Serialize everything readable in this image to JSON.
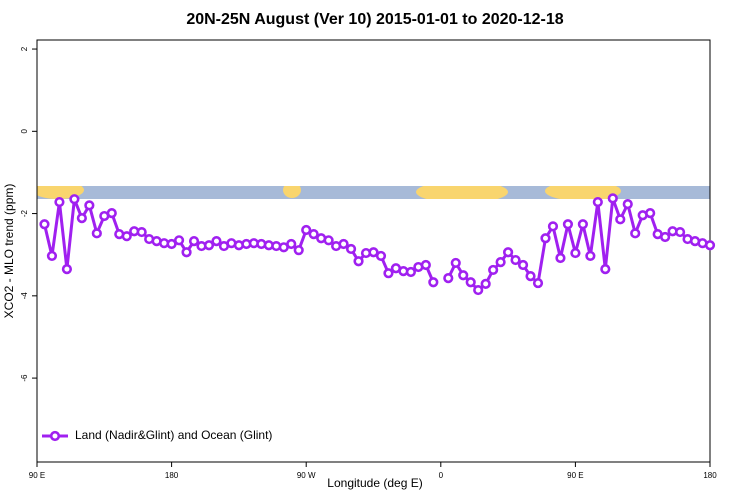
{
  "chart_data": {
    "type": "line",
    "title": "20N-25N August (Ver 10)   2015-01-01 to 2020-12-18",
    "x_label": "Longitude (deg E)",
    "y_label": "XCO2 - MLO trend (ppm)",
    "x": [
      95,
      100,
      105,
      110,
      115,
      120,
      125,
      130,
      135,
      140,
      145,
      150,
      155,
      160,
      165,
      170,
      175,
      180,
      185,
      190,
      195,
      200,
      205,
      210,
      215,
      220,
      225,
      230,
      235,
      240,
      245,
      250,
      255,
      260,
      265,
      270,
      275,
      280,
      285,
      290,
      295,
      300,
      305,
      310,
      315,
      320,
      325,
      330,
      335,
      340,
      345,
      350,
      355,
      360,
      365,
      370,
      375,
      380,
      385,
      390,
      395,
      400,
      405,
      410,
      415,
      420,
      425,
      430,
      435,
      440,
      445,
      450,
      455,
      460,
      465,
      470,
      475,
      480,
      485,
      490,
      495,
      500,
      505,
      510,
      515,
      520,
      525,
      530,
      535,
      540
    ],
    "series": [
      {
        "name": "Land (Nadir&Glint) and Ocean (Glint)",
        "color": "#a020f0",
        "values": [
          -2.26,
          -3.03,
          -1.72,
          -3.35,
          -1.65,
          -2.11,
          -1.8,
          -2.48,
          -2.06,
          -1.99,
          -2.5,
          -2.55,
          -2.43,
          -2.45,
          -2.62,
          -2.67,
          -2.72,
          -2.74,
          -2.65,
          -2.94,
          -2.67,
          -2.79,
          -2.77,
          -2.67,
          -2.79,
          -2.72,
          -2.77,
          -2.74,
          -2.72,
          -2.74,
          -2.77,
          -2.79,
          -2.82,
          -2.74,
          -2.89,
          -2.4,
          -2.5,
          -2.6,
          -2.65,
          -2.79,
          -2.74,
          -2.86,
          -3.16,
          -2.96,
          -2.94,
          -3.03,
          -3.45,
          -3.33,
          -3.4,
          -3.42,
          -3.3,
          -3.25,
          -3.67,
          null,
          -3.57,
          -3.2,
          -3.5,
          -3.67,
          -3.86,
          -3.71,
          -3.37,
          -3.18,
          -2.94,
          -3.13,
          -3.25,
          -3.52,
          -3.69,
          -2.6,
          -2.31,
          -3.08,
          -2.26,
          -2.96,
          -2.26,
          -3.03,
          -1.72,
          -3.35,
          -1.63,
          -2.14,
          -1.77,
          -2.48,
          -2.04,
          -1.99,
          -2.5,
          -2.57,
          -2.43,
          -2.45,
          -2.62,
          -2.67,
          -2.72,
          -2.77
        ]
      }
    ],
    "xlim": [
      90,
      540
    ],
    "ylim": [
      -8.04,
      2.22
    ],
    "xticks": [
      {
        "value": 90,
        "label": "90 E"
      },
      180,
      {
        "value": 270,
        "label": "90 W"
      },
      {
        "value": 360,
        "label": "0"
      },
      {
        "value": 450,
        "label": "90 E"
      },
      {
        "value": 540,
        "label": "180"
      }
    ],
    "yticks": [
      2,
      0,
      -2,
      -4,
      -6
    ],
    "legend": "bottomleft"
  }
}
